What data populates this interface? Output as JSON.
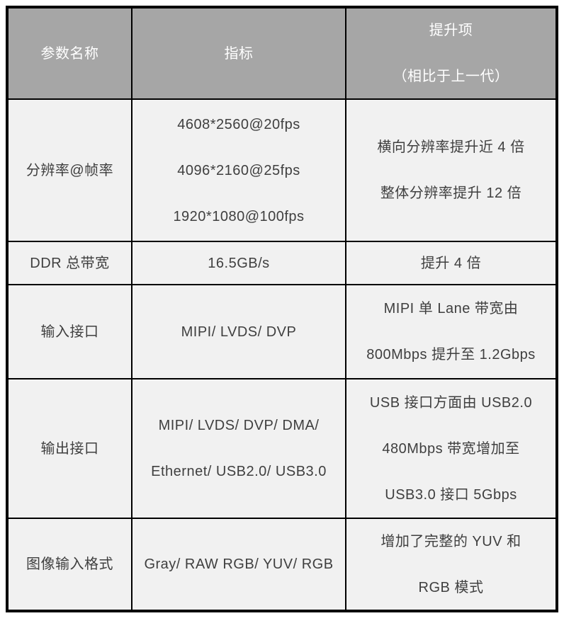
{
  "table": {
    "header": {
      "param": "参数名称",
      "spec": "指标",
      "improvement_line1": "提升项",
      "improvement_line2": "（相比于上一代）"
    },
    "rows": [
      {
        "param": "分辨率@帧率",
        "spec": [
          "4608*2560@20fps",
          "4096*2160@25fps",
          "1920*1080@100fps"
        ],
        "improvement": [
          "横向分辨率提升近 4 倍",
          "整体分辨率提升 12 倍"
        ]
      },
      {
        "param": "DDR 总带宽",
        "spec": [
          "16.5GB/s"
        ],
        "improvement": [
          "提升 4 倍"
        ]
      },
      {
        "param": "输入接口",
        "spec": [
          "MIPI/ LVDS/ DVP"
        ],
        "improvement": [
          "MIPI 单 Lane 带宽由",
          "800Mbps 提升至 1.2Gbps"
        ]
      },
      {
        "param": "输出接口",
        "spec": [
          "MIPI/ LVDS/ DVP/ DMA/",
          "Ethernet/ USB2.0/ USB3.0"
        ],
        "improvement": [
          "USB 接口方面由 USB2.0",
          "480Mbps 带宽增加至",
          "USB3.0 接口 5Gbps"
        ]
      },
      {
        "param": "图像输入格式",
        "spec": [
          "Gray/ RAW RGB/ YUV/ RGB"
        ],
        "improvement": [
          "增加了完整的 YUV 和",
          "RGB 模式"
        ]
      }
    ],
    "colors": {
      "header_bg": "#a6a6a6",
      "header_text": "#ffffff",
      "cell_bg": "#f1f1f1",
      "cell_text": "#3f3f3f",
      "border": "#000000"
    }
  }
}
